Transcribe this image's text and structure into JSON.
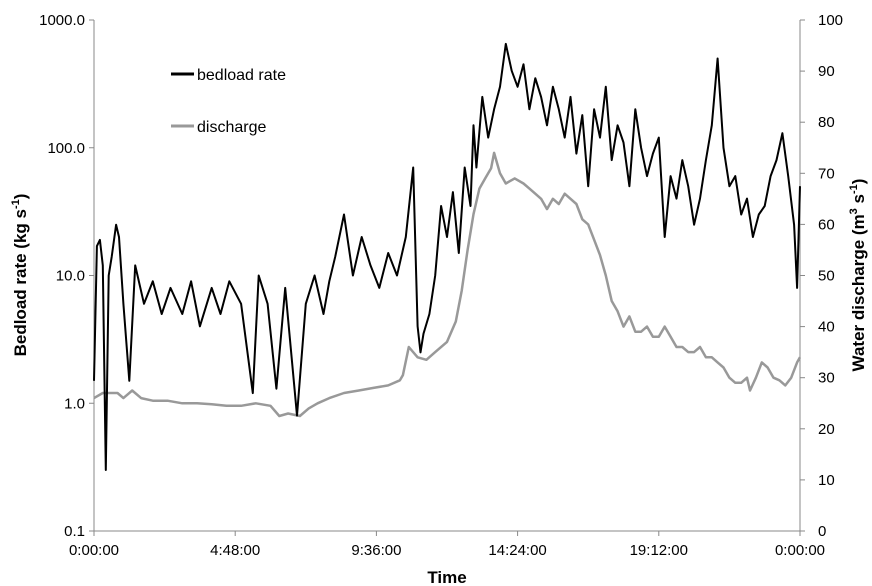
{
  "chart_data": {
    "type": "line",
    "title": "",
    "xlabel": "Time",
    "ylabel_left": "Bedload rate (kg s",
    "ylabel_left_sup": "-1",
    "ylabel_left_end": ")",
    "ylabel_right": "Water discharge (m",
    "ylabel_right_sup1": "3",
    "ylabel_right_mid": " s",
    "ylabel_right_sup2": "-1",
    "ylabel_right_end": ")",
    "y_left_scale": "log",
    "y_left_lim": [
      0.1,
      1000
    ],
    "y_left_ticks": [
      "1000.0",
      "100.0",
      "10.0",
      "1.0",
      "0.1"
    ],
    "y_right_lim": [
      0,
      100
    ],
    "y_right_ticks": [
      "100",
      "90",
      "80",
      "70",
      "60",
      "50",
      "40",
      "30",
      "20",
      "10",
      "0"
    ],
    "x_lim_hours": [
      0,
      24
    ],
    "x_ticks": [
      "0:00:00",
      "4:48:00",
      "9:36:00",
      "14:24:00",
      "19:12:00",
      "0:00:00"
    ],
    "grid": false,
    "legend_position": "top-left",
    "series": [
      {
        "name": "bedload rate",
        "axis": "left",
        "color": "#000000",
        "points": [
          [
            0.0,
            1.5
          ],
          [
            0.1,
            17
          ],
          [
            0.2,
            19
          ],
          [
            0.3,
            12
          ],
          [
            0.4,
            0.3
          ],
          [
            0.5,
            10
          ],
          [
            0.6,
            14
          ],
          [
            0.75,
            25
          ],
          [
            0.85,
            20
          ],
          [
            1.0,
            6
          ],
          [
            1.2,
            1.5
          ],
          [
            1.4,
            12
          ],
          [
            1.7,
            6
          ],
          [
            2.0,
            9
          ],
          [
            2.3,
            5
          ],
          [
            2.6,
            8
          ],
          [
            3.0,
            5
          ],
          [
            3.3,
            9
          ],
          [
            3.6,
            4
          ],
          [
            4.0,
            8
          ],
          [
            4.3,
            5
          ],
          [
            4.6,
            9
          ],
          [
            5.0,
            6
          ],
          [
            5.4,
            1.2
          ],
          [
            5.6,
            10
          ],
          [
            5.9,
            6
          ],
          [
            6.2,
            1.3
          ],
          [
            6.5,
            8
          ],
          [
            6.9,
            0.8
          ],
          [
            7.2,
            6
          ],
          [
            7.5,
            10
          ],
          [
            7.8,
            5
          ],
          [
            8.0,
            9
          ],
          [
            8.2,
            14
          ],
          [
            8.5,
            30
          ],
          [
            8.8,
            10
          ],
          [
            9.1,
            20
          ],
          [
            9.4,
            12
          ],
          [
            9.7,
            8
          ],
          [
            10.0,
            15
          ],
          [
            10.3,
            10
          ],
          [
            10.6,
            20
          ],
          [
            10.85,
            70
          ],
          [
            11.0,
            4
          ],
          [
            11.1,
            2.5
          ],
          [
            11.2,
            3.5
          ],
          [
            11.4,
            5
          ],
          [
            11.6,
            10
          ],
          [
            11.8,
            35
          ],
          [
            12.0,
            20
          ],
          [
            12.2,
            45
          ],
          [
            12.4,
            15
          ],
          [
            12.6,
            70
          ],
          [
            12.8,
            35
          ],
          [
            12.9,
            150
          ],
          [
            13.0,
            70
          ],
          [
            13.2,
            250
          ],
          [
            13.4,
            120
          ],
          [
            13.6,
            200
          ],
          [
            13.8,
            300
          ],
          [
            14.0,
            650
          ],
          [
            14.2,
            400
          ],
          [
            14.4,
            300
          ],
          [
            14.6,
            450
          ],
          [
            14.8,
            200
          ],
          [
            15.0,
            350
          ],
          [
            15.2,
            250
          ],
          [
            15.4,
            150
          ],
          [
            15.6,
            300
          ],
          [
            15.8,
            200
          ],
          [
            16.0,
            120
          ],
          [
            16.2,
            250
          ],
          [
            16.4,
            90
          ],
          [
            16.6,
            180
          ],
          [
            16.8,
            50
          ],
          [
            17.0,
            200
          ],
          [
            17.2,
            120
          ],
          [
            17.4,
            300
          ],
          [
            17.6,
            80
          ],
          [
            17.8,
            150
          ],
          [
            18.0,
            110
          ],
          [
            18.2,
            50
          ],
          [
            18.4,
            200
          ],
          [
            18.6,
            100
          ],
          [
            18.8,
            60
          ],
          [
            19.0,
            90
          ],
          [
            19.2,
            120
          ],
          [
            19.4,
            20
          ],
          [
            19.6,
            60
          ],
          [
            19.8,
            40
          ],
          [
            20.0,
            80
          ],
          [
            20.2,
            50
          ],
          [
            20.4,
            25
          ],
          [
            20.6,
            40
          ],
          [
            20.8,
            80
          ],
          [
            21.0,
            150
          ],
          [
            21.2,
            500
          ],
          [
            21.4,
            100
          ],
          [
            21.6,
            50
          ],
          [
            21.8,
            60
          ],
          [
            22.0,
            30
          ],
          [
            22.2,
            40
          ],
          [
            22.4,
            20
          ],
          [
            22.6,
            30
          ],
          [
            22.8,
            35
          ],
          [
            23.0,
            60
          ],
          [
            23.2,
            80
          ],
          [
            23.4,
            130
          ],
          [
            23.6,
            60
          ],
          [
            23.8,
            25
          ],
          [
            23.9,
            8
          ],
          [
            24.0,
            50
          ]
        ]
      },
      {
        "name": "discharge",
        "axis": "right",
        "color": "#999999",
        "points": [
          [
            0.0,
            26
          ],
          [
            0.3,
            27
          ],
          [
            0.8,
            27
          ],
          [
            1.0,
            26
          ],
          [
            1.3,
            27.5
          ],
          [
            1.6,
            26
          ],
          [
            2.0,
            25.5
          ],
          [
            2.5,
            25.5
          ],
          [
            3.0,
            25
          ],
          [
            3.5,
            25
          ],
          [
            4.0,
            24.8
          ],
          [
            4.5,
            24.5
          ],
          [
            5.0,
            24.5
          ],
          [
            5.5,
            25
          ],
          [
            6.0,
            24.5
          ],
          [
            6.3,
            22.5
          ],
          [
            6.6,
            23
          ],
          [
            7.0,
            22.5
          ],
          [
            7.3,
            24
          ],
          [
            7.6,
            25
          ],
          [
            8.0,
            26
          ],
          [
            8.5,
            27
          ],
          [
            9.0,
            27.5
          ],
          [
            9.5,
            28
          ],
          [
            10.0,
            28.5
          ],
          [
            10.4,
            29.5
          ],
          [
            10.5,
            30.5
          ],
          [
            10.7,
            36
          ],
          [
            11.0,
            34
          ],
          [
            11.3,
            33.5
          ],
          [
            11.6,
            35
          ],
          [
            12.0,
            37
          ],
          [
            12.3,
            41
          ],
          [
            12.5,
            47
          ],
          [
            12.7,
            55
          ],
          [
            12.9,
            62
          ],
          [
            13.1,
            67
          ],
          [
            13.3,
            69
          ],
          [
            13.5,
            71
          ],
          [
            13.6,
            74
          ],
          [
            13.8,
            70
          ],
          [
            14.0,
            68
          ],
          [
            14.3,
            69
          ],
          [
            14.6,
            68
          ],
          [
            14.8,
            67
          ],
          [
            15.0,
            66
          ],
          [
            15.2,
            65
          ],
          [
            15.4,
            63
          ],
          [
            15.6,
            65
          ],
          [
            15.8,
            64
          ],
          [
            16.0,
            66
          ],
          [
            16.2,
            65
          ],
          [
            16.4,
            64
          ],
          [
            16.6,
            61
          ],
          [
            16.8,
            60
          ],
          [
            17.0,
            57
          ],
          [
            17.2,
            54
          ],
          [
            17.4,
            50
          ],
          [
            17.6,
            45
          ],
          [
            17.8,
            43
          ],
          [
            18.0,
            40
          ],
          [
            18.2,
            42
          ],
          [
            18.4,
            39
          ],
          [
            18.6,
            39
          ],
          [
            18.8,
            40
          ],
          [
            19.0,
            38
          ],
          [
            19.2,
            38
          ],
          [
            19.4,
            40
          ],
          [
            19.6,
            38
          ],
          [
            19.8,
            36
          ],
          [
            20.0,
            36
          ],
          [
            20.2,
            35
          ],
          [
            20.4,
            35
          ],
          [
            20.6,
            36
          ],
          [
            20.8,
            34
          ],
          [
            21.0,
            34
          ],
          [
            21.2,
            33
          ],
          [
            21.4,
            32
          ],
          [
            21.6,
            30
          ],
          [
            21.8,
            29
          ],
          [
            22.0,
            29
          ],
          [
            22.2,
            30
          ],
          [
            22.3,
            27.5
          ],
          [
            22.5,
            30
          ],
          [
            22.7,
            33
          ],
          [
            22.9,
            32
          ],
          [
            23.1,
            30
          ],
          [
            23.3,
            29.5
          ],
          [
            23.5,
            28.5
          ],
          [
            23.7,
            30
          ],
          [
            23.9,
            33
          ],
          [
            24.0,
            34
          ]
        ]
      }
    ]
  }
}
